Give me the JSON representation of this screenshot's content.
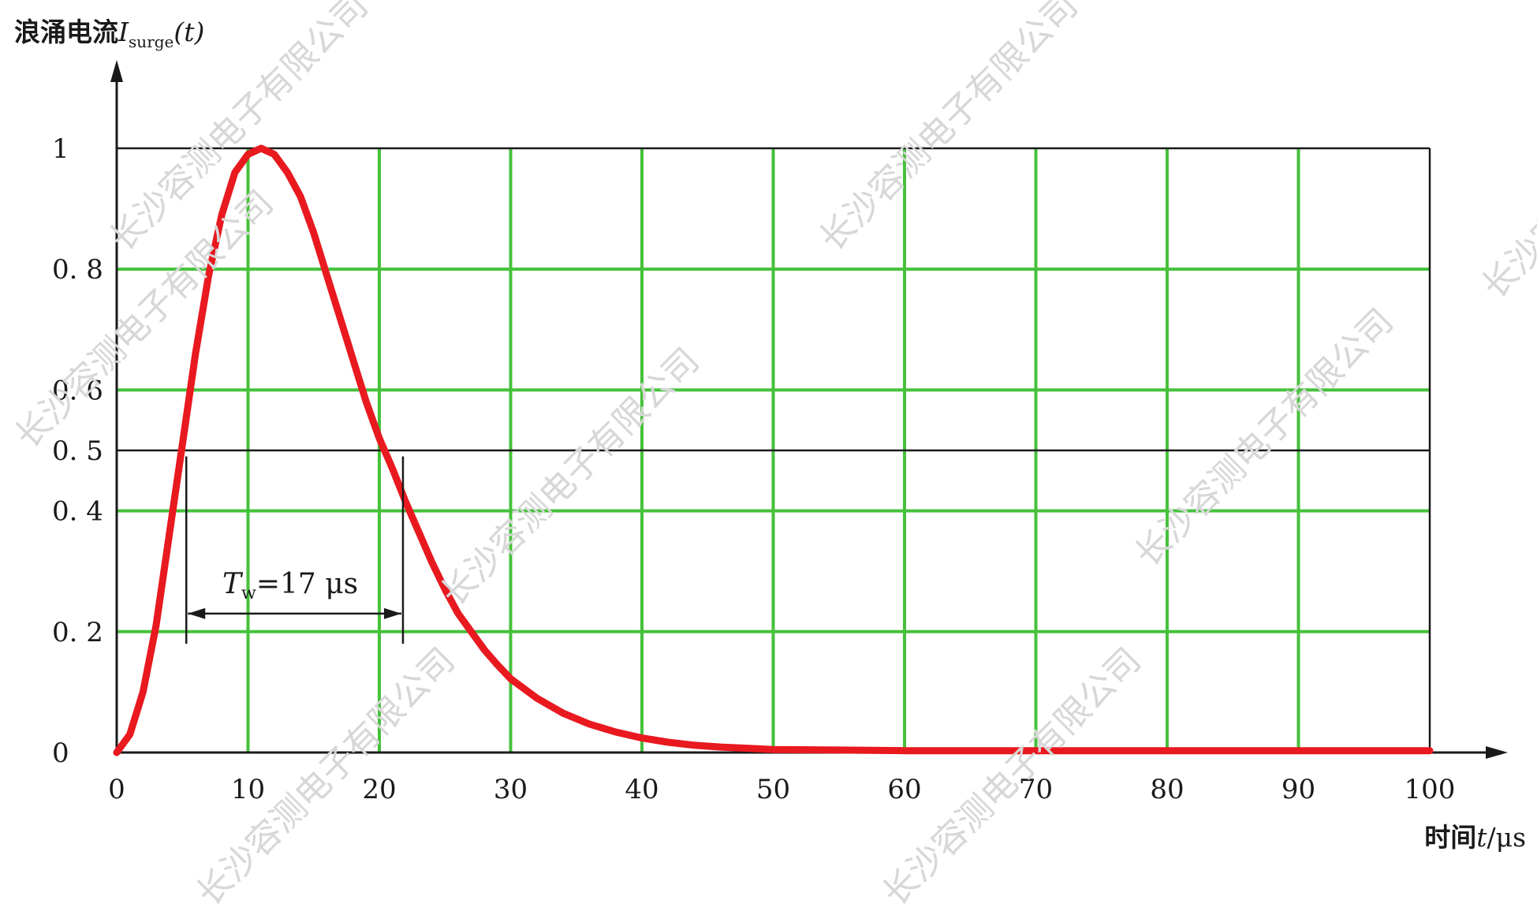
{
  "chart_data": {
    "type": "line",
    "ylabel_prefix": "浪涌电流",
    "ylabel_symbol": "I",
    "ylabel_sub": "surge",
    "ylabel_suffix": "(t)",
    "xlabel_prefix": "时间",
    "xlabel_symbol": "t",
    "xlabel_suffix": "/μs",
    "xlim": [
      0,
      100
    ],
    "ylim": [
      0,
      1
    ],
    "x_ticks": [
      0,
      10,
      20,
      30,
      40,
      50,
      60,
      70,
      80,
      90,
      100
    ],
    "y_ticks": [
      0,
      0.2,
      0.4,
      0.5,
      0.6,
      0.8,
      1
    ],
    "y_tick_labels": [
      "0",
      "0. 2",
      "0. 4",
      "0. 5",
      "0. 6",
      "0. 8",
      "1"
    ],
    "grid": true,
    "series": [
      {
        "color": "#e8191f",
        "x": [
          0,
          1,
          2,
          3,
          4,
          5,
          6,
          7,
          8,
          9,
          10,
          11,
          12,
          13,
          14,
          15,
          16,
          17,
          18,
          19,
          20,
          21,
          22,
          23,
          24,
          25,
          26,
          27,
          28,
          29,
          30,
          32,
          34,
          36,
          38,
          40,
          42,
          44,
          46,
          48,
          50,
          55,
          60,
          70,
          80,
          90,
          100
        ],
        "y": [
          0,
          0.03,
          0.1,
          0.21,
          0.36,
          0.51,
          0.66,
          0.79,
          0.89,
          0.96,
          0.99,
          1.0,
          0.99,
          0.96,
          0.92,
          0.86,
          0.79,
          0.72,
          0.65,
          0.58,
          0.52,
          0.47,
          0.415,
          0.365,
          0.315,
          0.27,
          0.23,
          0.2,
          0.17,
          0.145,
          0.122,
          0.09,
          0.065,
          0.047,
          0.034,
          0.024,
          0.017,
          0.012,
          0.009,
          0.007,
          0.005,
          0.004,
          0.003,
          0.003,
          0.003,
          0.003,
          0.003
        ]
      }
    ],
    "annotations": [
      {
        "type": "level",
        "y": 0.5
      },
      {
        "type": "width-marker",
        "x_start": 5.3,
        "x_end": 21.8,
        "label_symbol": "T",
        "label_sub": "w",
        "label_value": "=17  μs"
      }
    ]
  },
  "watermark": "长沙容测电子有限公司",
  "colors": {
    "grid": "#45c13a",
    "frame": "#1a1a1a",
    "curve": "#e8191f",
    "watermark": "#d7d7d7"
  }
}
